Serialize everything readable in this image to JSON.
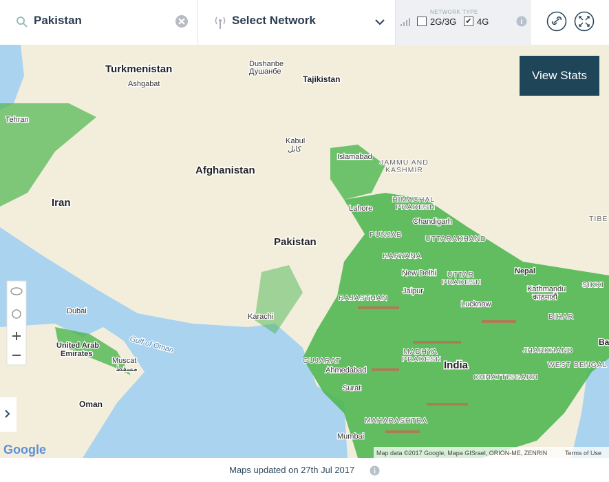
{
  "header": {
    "search": "Pakistan",
    "network_select": "Select Network",
    "network_type_label": "NETWORK TYPE",
    "options": [
      {
        "label": "2G/3G",
        "checked": false
      },
      {
        "label": "4G",
        "checked": true
      }
    ]
  },
  "view_stats": "View Stats",
  "map": {
    "labels": [
      "Turkmenistan",
      "Ashgabat",
      "Dushanbe",
      "Душанбе",
      "Tajikistan",
      "Tehran",
      "Afghanistan",
      "Kabul",
      "کابل",
      "Islamabad",
      "JAMMU AND",
      "KASHMIR",
      "Iran",
      "Lahore",
      "HIMACHAL",
      "PRADESH",
      "Chandigarh",
      "TIBE",
      "Pakistan",
      "PUNJAB",
      "UTTARAKHAND",
      "HARYANA",
      "New Delhi",
      "UTTAR",
      "PRADESH",
      "Nepal",
      "Kathmandu",
      "काठमाडौं",
      "SIKKI",
      "Jaipur",
      "RAJASTHAN",
      "Lucknow",
      "BIHAR",
      "Dubai",
      "Karachi",
      "Gulf of Oman",
      "United Arab",
      "Emirates",
      "Muscat",
      "مسقط",
      "GUJARAT",
      "Ahmedabad",
      "MADHYA",
      "PRADESH",
      "India",
      "JHARKHAND",
      "WEST BENGAL",
      "CHHATTISGARH",
      "Surat",
      "Oman",
      "MAHARASHTRA",
      "Mumbai",
      "Ba",
      "Google"
    ],
    "attribution": "Map data ©2017 Google, Mapa GISrael, ORION-ME, ZENRIN",
    "terms": "Terms of Use"
  },
  "footer": {
    "updated": "Maps updated on 27th Jul 2017"
  }
}
